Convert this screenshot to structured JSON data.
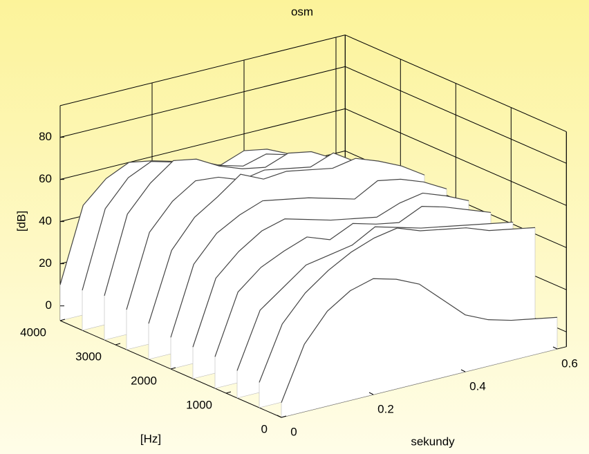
{
  "chart_data": {
    "type": "waterfall",
    "title": "osm",
    "xlabel": "sekundy",
    "ylabel": "[Hz]",
    "zlabel": "[dB]",
    "x": [
      0,
      0.05,
      0.1,
      0.15,
      0.2,
      0.25,
      0.3,
      0.35,
      0.4,
      0.45,
      0.5,
      0.55,
      0.6
    ],
    "series": [
      {
        "y": 4000,
        "values": [
          10,
          45,
          55,
          60,
          58,
          55,
          50,
          48,
          52,
          50,
          45,
          40,
          35
        ]
      },
      {
        "y": 3600,
        "values": [
          12,
          48,
          60,
          65,
          62,
          60,
          55,
          52,
          55,
          52,
          48,
          45,
          40
        ]
      },
      {
        "y": 3200,
        "values": [
          14,
          50,
          62,
          70,
          68,
          62,
          58,
          56,
          60,
          58,
          52,
          48,
          42
        ]
      },
      {
        "y": 2800,
        "values": [
          12,
          46,
          58,
          65,
          64,
          60,
          62,
          60,
          58,
          62,
          55,
          50,
          45
        ]
      },
      {
        "y": 2400,
        "values": [
          10,
          42,
          55,
          62,
          70,
          65,
          66,
          64,
          62,
          64,
          60,
          55,
          48
        ]
      },
      {
        "y": 2000,
        "values": [
          8,
          40,
          52,
          58,
          62,
          60,
          58,
          55,
          52,
          58,
          56,
          52,
          46
        ]
      },
      {
        "y": 1600,
        "values": [
          8,
          38,
          48,
          55,
          58,
          55,
          52,
          50,
          48,
          52,
          54,
          50,
          45
        ]
      },
      {
        "y": 1200,
        "values": [
          8,
          36,
          45,
          50,
          54,
          50,
          55,
          52,
          50,
          55,
          52,
          48,
          44
        ]
      },
      {
        "y": 800,
        "values": [
          6,
          32,
          40,
          48,
          50,
          52,
          58,
          55,
          52,
          50,
          48,
          46,
          44
        ]
      },
      {
        "y": 400,
        "values": [
          5,
          30,
          42,
          50,
          56,
          60,
          62,
          58,
          56,
          54,
          50,
          48,
          46
        ]
      },
      {
        "y": 0,
        "values": [
          0,
          25,
          38,
          45,
          48,
          45,
          40,
          30,
          20,
          15,
          12,
          10,
          8
        ]
      }
    ],
    "line_color": "#444444",
    "xlim": [
      0,
      0.62
    ],
    "ylim": [
      0,
      4000
    ],
    "zlim": [
      -7,
      95
    ],
    "xticks": [
      0,
      0.2,
      0.4,
      0.6
    ],
    "yticks": [
      0,
      1000,
      2000,
      3000,
      4000
    ],
    "zticks": [
      0,
      20,
      40,
      60,
      80
    ],
    "grid": true
  }
}
